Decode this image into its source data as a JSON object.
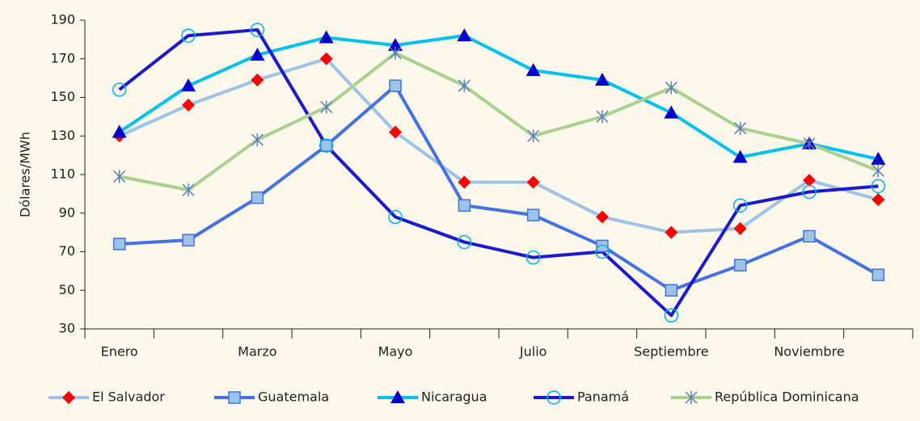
{
  "chart_data": {
    "type": "line",
    "y_label": "Dólares/MWh",
    "categories": [
      "Enero",
      null,
      "Marzo",
      null,
      "Mayo",
      null,
      "Julio",
      null,
      "Septiembre",
      null,
      "Noviembre",
      null
    ],
    "ylim": [
      30,
      190
    ],
    "yticks": [
      30,
      50,
      70,
      90,
      110,
      130,
      150,
      170,
      190
    ],
    "legend": "bottom",
    "series": [
      {
        "name": "El Salvador",
        "color": "#9dc3e6",
        "marker": "diamond",
        "marker_color": "#ff0000",
        "values": [
          130,
          146,
          159,
          170,
          132,
          106,
          106,
          88,
          80,
          82,
          107,
          97
        ]
      },
      {
        "name": "Guatemala",
        "color": "#4472e4",
        "marker": "square",
        "marker_color": "#9dc3e6",
        "values": [
          74,
          76,
          98,
          125,
          156,
          94,
          89,
          73,
          50,
          63,
          78,
          58
        ]
      },
      {
        "name": "Nicaragua",
        "color": "#00c0f0",
        "marker": "triangle",
        "marker_color": "#0000cc",
        "values": [
          132,
          156,
          172,
          181,
          177,
          182,
          164,
          159,
          142,
          119,
          126,
          118
        ]
      },
      {
        "name": "Panamá",
        "color": "#1a1ad0",
        "marker": "circle",
        "marker_color": "#00b0f0",
        "values": [
          154,
          182,
          185,
          125,
          88,
          75,
          67,
          70,
          37,
          94,
          101,
          104
        ]
      },
      {
        "name": "República Dominicana",
        "color": "#a9d18e",
        "marker": "asterisk",
        "marker_color": "#5b7bc0",
        "values": [
          109,
          102,
          128,
          145,
          173,
          156,
          130,
          140,
          155,
          134,
          126,
          112
        ]
      }
    ]
  }
}
